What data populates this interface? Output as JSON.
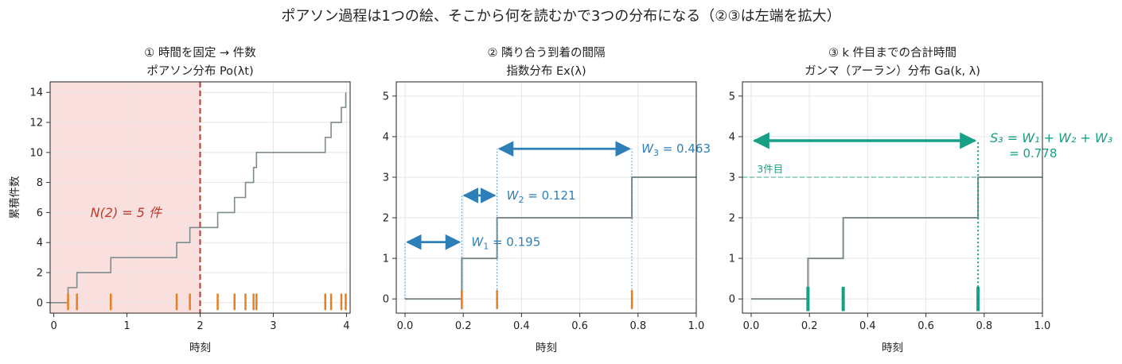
{
  "figure_title": "ポアソン過程は1つの絵、そこから何を読むかで3つの分布になる（②③は左端を拡大）",
  "colors": {
    "step": "#7f8c8d",
    "tick": "#e67e22",
    "red": "#c0392b",
    "shade": "#f9e0de",
    "blue": "#2e7fb8",
    "green": "#16a085",
    "grid": "#e6e6e6"
  },
  "chart_data": [
    {
      "type": "line",
      "subtype": "step",
      "title_line1": "① 時間を固定 → 件数",
      "title_line2": "ポアソン分布 Po(λt)",
      "xlabel": "時刻",
      "ylabel": "累積件数",
      "xlim": [
        -0.05,
        4.05
      ],
      "ylim": [
        -0.7,
        14.7
      ],
      "xticks": [
        0,
        1,
        2,
        3,
        4
      ],
      "yticks": [
        0,
        2,
        4,
        6,
        8,
        10,
        12,
        14
      ],
      "grid": true,
      "arrival_times": [
        0.195,
        0.316,
        0.779,
        1.68,
        1.86,
        2.24,
        2.47,
        2.62,
        2.73,
        2.77,
        3.71,
        3.79,
        3.93,
        3.99
      ],
      "fixed_time": 2.0,
      "annotation": "N(2) = 5 件",
      "annotation_pos": [
        0.5,
        5.7
      ]
    },
    {
      "type": "line",
      "subtype": "step",
      "title_line1": "② 隣り合う到着の間隔",
      "title_line2": "指数分布 Ex(λ)",
      "xlabel": "時刻",
      "xlim": [
        -0.03,
        1.0
      ],
      "ylim": [
        -0.35,
        5.35
      ],
      "xticks": [
        0.0,
        0.2,
        0.4,
        0.6,
        0.8,
        1.0
      ],
      "yticks": [
        0,
        1,
        2,
        3,
        4,
        5
      ],
      "grid": true,
      "arrival_times": [
        0.195,
        0.316,
        0.779
      ],
      "intervals": [
        {
          "from": 0.0,
          "to": 0.195,
          "y": 1.4,
          "label": "W",
          "sub": "1",
          "value": "0.195"
        },
        {
          "from": 0.195,
          "to": 0.316,
          "y": 2.55,
          "label": "W",
          "sub": "2",
          "value": "0.121"
        },
        {
          "from": 0.316,
          "to": 0.779,
          "y": 3.7,
          "label": "W",
          "sub": "3",
          "value": "0.463"
        }
      ]
    },
    {
      "type": "line",
      "subtype": "step",
      "title_line1": "③ k 件目までの合計時間",
      "title_line2": "ガンマ（アーラン）分布 Ga(k, λ)",
      "xlabel": "時刻",
      "xlim": [
        -0.03,
        1.0
      ],
      "ylim": [
        -0.35,
        5.35
      ],
      "xticks": [
        0.0,
        0.2,
        0.4,
        0.6,
        0.8,
        1.0
      ],
      "yticks": [
        0,
        1,
        2,
        3,
        4,
        5
      ],
      "grid": true,
      "arrival_times": [
        0.195,
        0.316,
        0.779
      ],
      "kth_label": "3件目",
      "kth_level": 3,
      "sum_arrow": {
        "from": 0.0,
        "to": 0.779,
        "y": 3.9
      },
      "sum_label": "S₃ = W₁ + W₂ + W₃",
      "sum_value": "= 0.778"
    }
  ]
}
